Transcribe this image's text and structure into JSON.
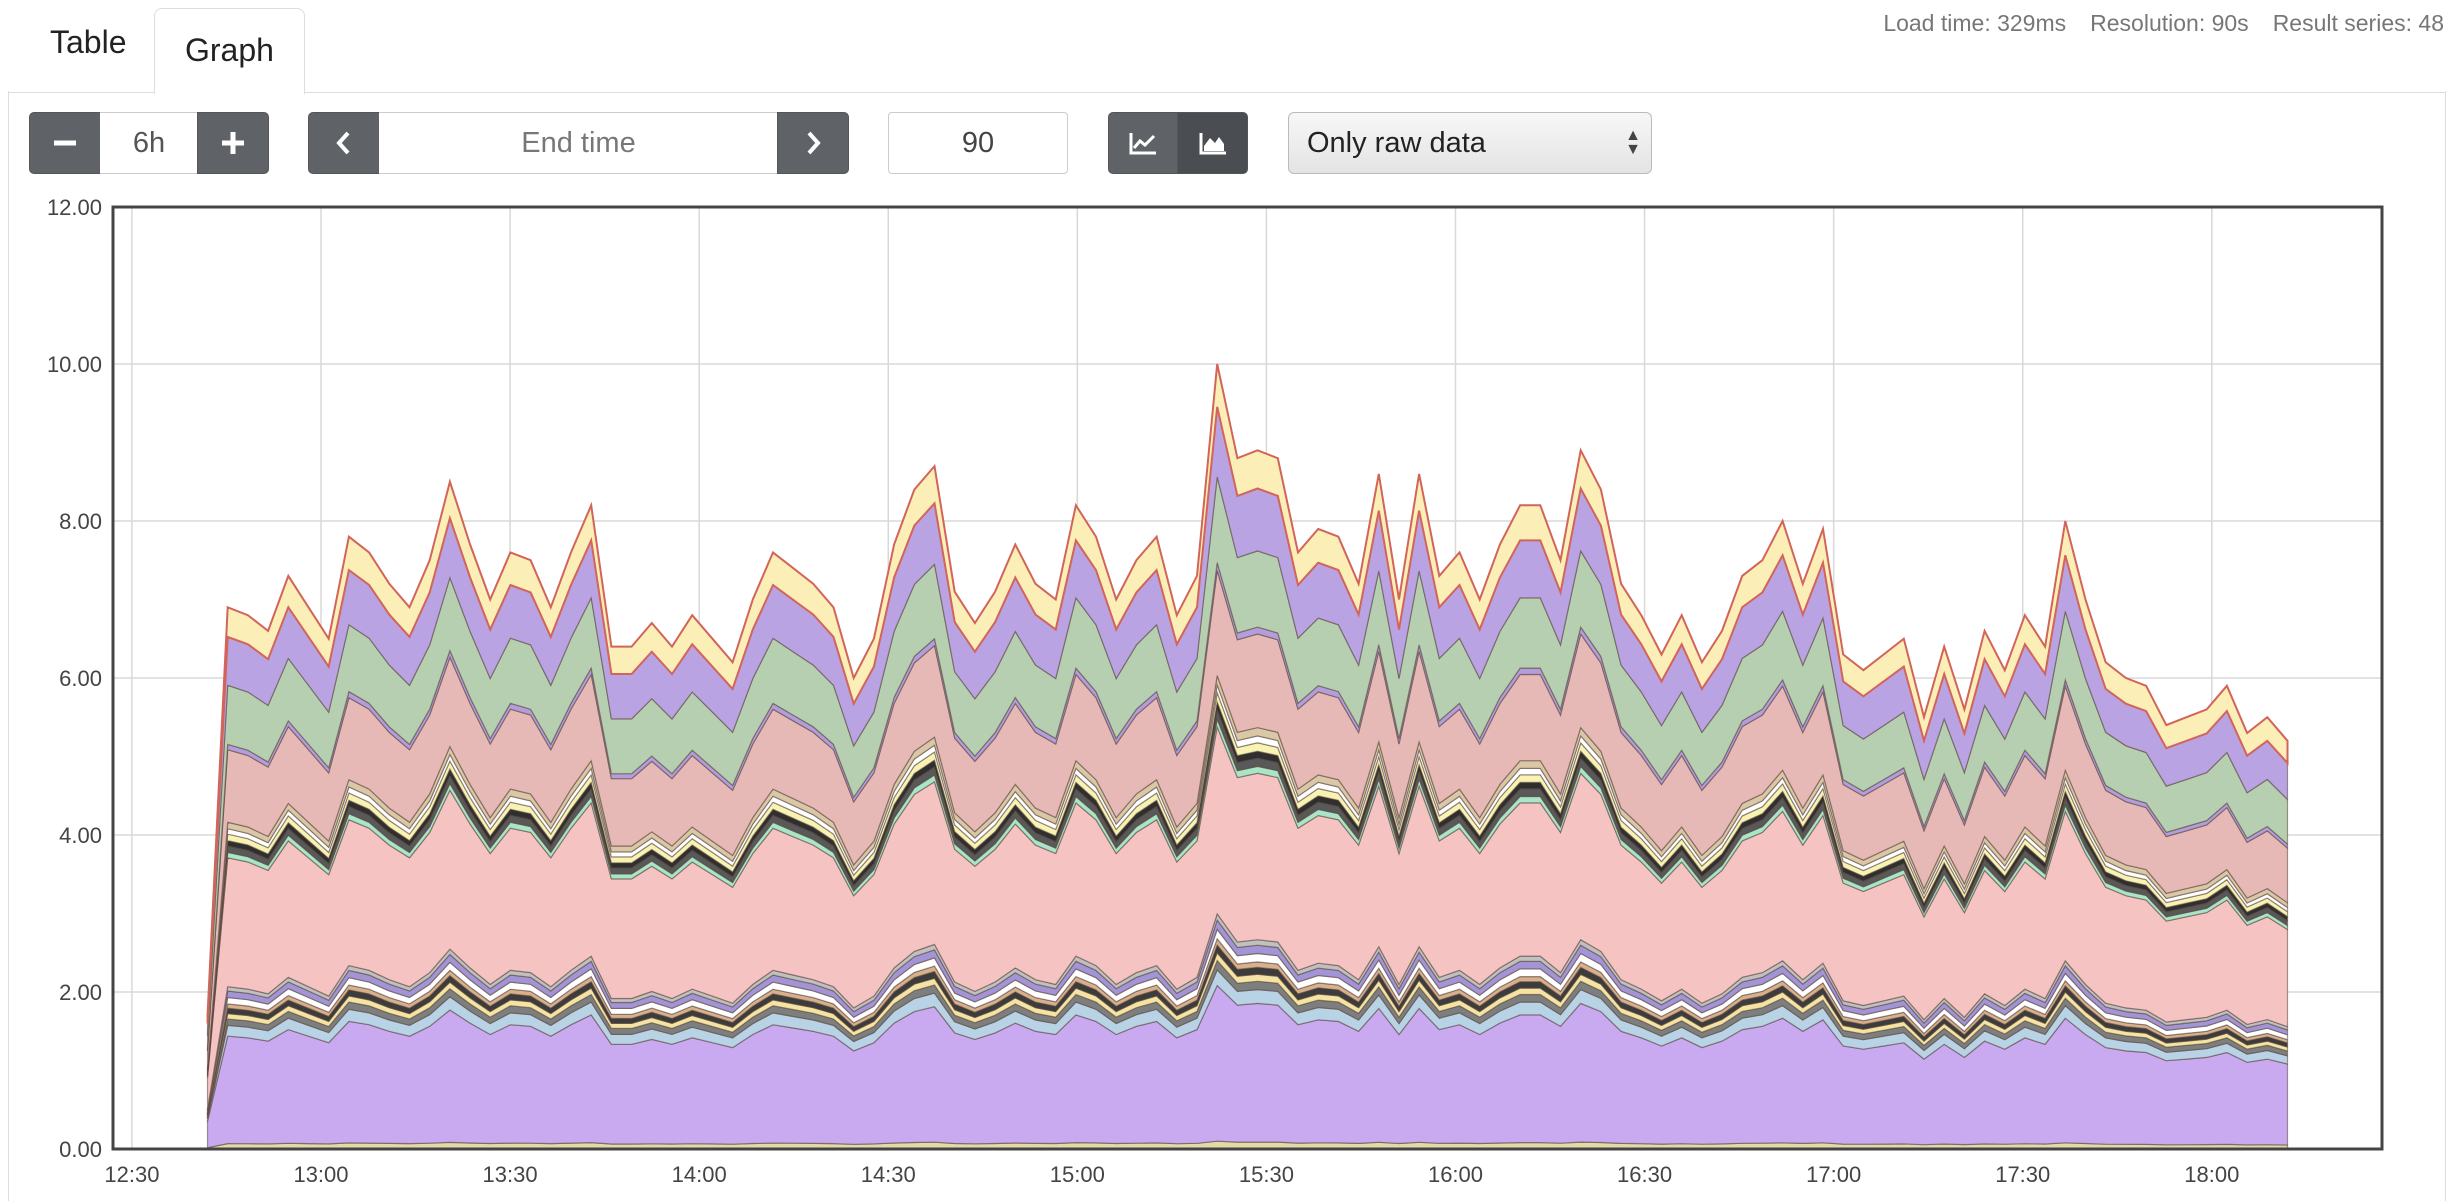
{
  "tabs": [
    {
      "label": "Table",
      "active": false
    },
    {
      "label": "Graph",
      "active": true
    }
  ],
  "stats": {
    "load_time": "Load time: 329ms",
    "resolution": "Resolution: 90s",
    "result_series": "Result series: 48"
  },
  "controls": {
    "range_value": "6h",
    "end_time_placeholder": "End time",
    "resolution_value": "90",
    "select_value": "Only raw data",
    "icons": {
      "minus": "minus-icon",
      "plus": "plus-icon",
      "prev": "chevron-left-icon",
      "next": "chevron-right-icon",
      "lines": "line-chart-icon",
      "stacked": "area-chart-icon"
    }
  },
  "chart_data": {
    "type": "area",
    "stacked": true,
    "series_count": 48,
    "y_ticks": [
      "0.00",
      "2.00",
      "4.00",
      "6.00",
      "8.00",
      "10.00",
      "12.00"
    ],
    "ylim": [
      0,
      12
    ],
    "x_ticks": [
      "12:30",
      "13:00",
      "13:30",
      "14:00",
      "14:30",
      "15:00",
      "15:30",
      "16:00",
      "16:30",
      "17:00",
      "17:30",
      "18:00"
    ],
    "x_start": "12:27",
    "x_end": "18:27",
    "data_start": "12:42",
    "data_points": 120,
    "grid": true,
    "total_envelope": [
      1.7,
      6.9,
      6.8,
      6.6,
      7.3,
      6.9,
      6.5,
      7.8,
      7.6,
      7.2,
      6.9,
      7.5,
      8.5,
      7.7,
      7.0,
      7.6,
      7.5,
      6.9,
      7.6,
      8.2,
      6.4,
      6.4,
      6.7,
      6.4,
      6.8,
      6.5,
      6.2,
      7.0,
      7.6,
      7.4,
      7.2,
      6.9,
      6.0,
      6.5,
      7.7,
      8.4,
      8.7,
      7.1,
      6.7,
      7.1,
      7.7,
      7.2,
      7.0,
      8.2,
      7.8,
      7.0,
      7.5,
      7.8,
      6.8,
      7.3,
      10.0,
      8.8,
      8.9,
      8.8,
      7.6,
      7.9,
      7.8,
      7.2,
      8.6,
      7.0,
      8.6,
      7.3,
      7.6,
      7.0,
      7.7,
      8.2,
      8.2,
      7.5,
      8.9,
      8.4,
      7.2,
      6.8,
      6.3,
      6.8,
      6.2,
      6.6,
      7.3,
      7.5,
      8.0,
      7.2,
      7.9,
      6.3,
      6.1,
      6.3,
      6.5,
      5.5,
      6.4,
      5.6,
      6.6,
      6.1,
      6.8,
      6.4,
      8.0,
      7.0,
      6.2,
      6.0,
      5.9,
      5.4,
      5.5,
      5.6,
      5.9,
      5.3,
      5.5,
      5.2
    ]
  }
}
